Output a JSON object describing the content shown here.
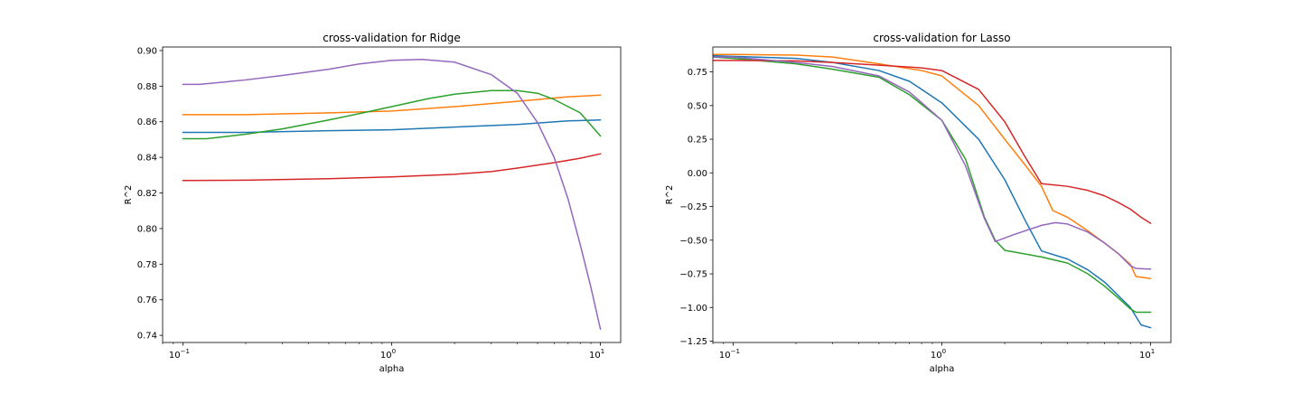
{
  "chart_data": [
    {
      "type": "line",
      "title": "cross-validation for Ridge",
      "xlabel": "alpha",
      "ylabel": "R^2",
      "xscale": "log",
      "xlim": [
        0.08,
        12.5
      ],
      "ylim": [
        0.736,
        0.902
      ],
      "xticks": [
        {
          "value": 0.1,
          "base": "10",
          "exp": "−1"
        },
        {
          "value": 1,
          "base": "10",
          "exp": "0"
        },
        {
          "value": 10,
          "base": "10",
          "exp": "1"
        }
      ],
      "yticks": [
        {
          "value": 0.74,
          "label": "0.74"
        },
        {
          "value": 0.76,
          "label": "0.76"
        },
        {
          "value": 0.78,
          "label": "0.78"
        },
        {
          "value": 0.8,
          "label": "0.80"
        },
        {
          "value": 0.82,
          "label": "0.82"
        },
        {
          "value": 0.84,
          "label": "0.84"
        },
        {
          "value": 0.86,
          "label": "0.86"
        },
        {
          "value": 0.88,
          "label": "0.88"
        },
        {
          "value": 0.9,
          "label": "0.90"
        }
      ],
      "grid": false,
      "series": [
        {
          "color": "#1f77b4",
          "points": [
            [
              0.1,
              0.854
            ],
            [
              0.2,
              0.854
            ],
            [
              0.5,
              0.855
            ],
            [
              1,
              0.8555
            ],
            [
              2,
              0.857
            ],
            [
              4,
              0.8585
            ],
            [
              7,
              0.8605
            ],
            [
              10,
              0.861
            ]
          ]
        },
        {
          "color": "#ff7f0e",
          "points": [
            [
              0.1,
              0.864
            ],
            [
              0.2,
              0.864
            ],
            [
              0.5,
              0.865
            ],
            [
              1,
              0.866
            ],
            [
              2,
              0.8685
            ],
            [
              4,
              0.8715
            ],
            [
              7,
              0.874
            ],
            [
              10,
              0.875
            ]
          ]
        },
        {
          "color": "#2ca02c",
          "points": [
            [
              0.1,
              0.8505
            ],
            [
              0.13,
              0.8505
            ],
            [
              0.2,
              0.853
            ],
            [
              0.3,
              0.856
            ],
            [
              0.5,
              0.861
            ],
            [
              0.8,
              0.866
            ],
            [
              1,
              0.8685
            ],
            [
              1.5,
              0.873
            ],
            [
              2,
              0.8755
            ],
            [
              3,
              0.8775
            ],
            [
              4,
              0.8775
            ],
            [
              5,
              0.876
            ],
            [
              6,
              0.8725
            ],
            [
              8,
              0.865
            ],
            [
              10,
              0.852
            ]
          ]
        },
        {
          "color": "#d62728",
          "points": [
            [
              0.1,
              0.827
            ],
            [
              0.2,
              0.8272
            ],
            [
              0.5,
              0.828
            ],
            [
              1,
              0.829
            ],
            [
              2,
              0.8305
            ],
            [
              3,
              0.832
            ],
            [
              4,
              0.834
            ],
            [
              6,
              0.837
            ],
            [
              8,
              0.8395
            ],
            [
              10,
              0.842
            ]
          ]
        },
        {
          "color": "#9467bd",
          "points": [
            [
              0.1,
              0.881
            ],
            [
              0.12,
              0.881
            ],
            [
              0.2,
              0.8835
            ],
            [
              0.3,
              0.886
            ],
            [
              0.5,
              0.8895
            ],
            [
              0.7,
              0.8925
            ],
            [
              1,
              0.8945
            ],
            [
              1.4,
              0.895
            ],
            [
              2,
              0.8935
            ],
            [
              3,
              0.8865
            ],
            [
              4,
              0.876
            ],
            [
              5,
              0.8595
            ],
            [
              6,
              0.84
            ],
            [
              7,
              0.8165
            ],
            [
              8,
              0.791
            ],
            [
              9,
              0.767
            ],
            [
              10,
              0.7435
            ]
          ]
        }
      ]
    },
    {
      "type": "line",
      "title": "cross-validation for Lasso",
      "xlabel": "alpha",
      "ylabel": "R^2",
      "xscale": "log",
      "xlim": [
        0.08,
        12.5
      ],
      "ylim": [
        -1.26,
        0.935
      ],
      "xticks": [
        {
          "value": 0.1,
          "base": "10",
          "exp": "−1"
        },
        {
          "value": 1,
          "base": "10",
          "exp": "0"
        },
        {
          "value": 10,
          "base": "10",
          "exp": "1"
        }
      ],
      "yticks": [
        {
          "value": 0.75,
          "label": "0.75"
        },
        {
          "value": 0.5,
          "label": "0.50"
        },
        {
          "value": 0.25,
          "label": "0.25"
        },
        {
          "value": 0.0,
          "label": "0.00"
        },
        {
          "value": -0.25,
          "label": "−0.25"
        },
        {
          "value": -0.5,
          "label": "−0.50"
        },
        {
          "value": -0.75,
          "label": "−0.75"
        },
        {
          "value": -1.0,
          "label": "−1.00"
        },
        {
          "value": -1.25,
          "label": "−1.25"
        }
      ],
      "grid": false,
      "series": [
        {
          "color": "#1f77b4",
          "points": [
            [
              0.08,
              0.87
            ],
            [
              0.1,
              0.865
            ],
            [
              0.2,
              0.85
            ],
            [
              0.3,
              0.82
            ],
            [
              0.5,
              0.76
            ],
            [
              0.7,
              0.68
            ],
            [
              1,
              0.52
            ],
            [
              1.5,
              0.25
            ],
            [
              2,
              -0.05
            ],
            [
              2.5,
              -0.35
            ],
            [
              3,
              -0.58
            ],
            [
              4,
              -0.64
            ],
            [
              5,
              -0.72
            ],
            [
              6,
              -0.81
            ],
            [
              8,
              -1.0
            ],
            [
              9,
              -1.13
            ],
            [
              10,
              -1.15
            ]
          ]
        },
        {
          "color": "#ff7f0e",
          "points": [
            [
              0.08,
              0.88
            ],
            [
              0.1,
              0.88
            ],
            [
              0.2,
              0.875
            ],
            [
              0.3,
              0.86
            ],
            [
              0.5,
              0.81
            ],
            [
              0.8,
              0.76
            ],
            [
              1,
              0.72
            ],
            [
              1.5,
              0.5
            ],
            [
              2,
              0.25
            ],
            [
              2.5,
              0.06
            ],
            [
              3,
              -0.1
            ],
            [
              3.4,
              -0.28
            ],
            [
              4,
              -0.33
            ],
            [
              5,
              -0.43
            ],
            [
              6,
              -0.52
            ],
            [
              7,
              -0.6
            ],
            [
              8,
              -0.68
            ],
            [
              8.5,
              -0.77
            ],
            [
              10,
              -0.785
            ]
          ]
        },
        {
          "color": "#2ca02c",
          "points": [
            [
              0.08,
              0.86
            ],
            [
              0.1,
              0.85
            ],
            [
              0.2,
              0.81
            ],
            [
              0.3,
              0.77
            ],
            [
              0.5,
              0.71
            ],
            [
              0.7,
              0.58
            ],
            [
              1,
              0.39
            ],
            [
              1.3,
              0.1
            ],
            [
              1.6,
              -0.33
            ],
            [
              1.8,
              -0.5
            ],
            [
              2,
              -0.575
            ],
            [
              3,
              -0.625
            ],
            [
              4,
              -0.67
            ],
            [
              5,
              -0.75
            ],
            [
              6,
              -0.84
            ],
            [
              7,
              -0.93
            ],
            [
              8,
              -1.01
            ],
            [
              8.5,
              -1.035
            ],
            [
              10,
              -1.035
            ]
          ]
        },
        {
          "color": "#d62728",
          "points": [
            [
              0.08,
              0.835
            ],
            [
              0.1,
              0.835
            ],
            [
              0.2,
              0.832
            ],
            [
              0.3,
              0.82
            ],
            [
              0.5,
              0.8
            ],
            [
              0.8,
              0.78
            ],
            [
              1,
              0.76
            ],
            [
              1.5,
              0.62
            ],
            [
              2,
              0.38
            ],
            [
              2.5,
              0.12
            ],
            [
              3,
              -0.08
            ],
            [
              4,
              -0.1
            ],
            [
              5,
              -0.13
            ],
            [
              6,
              -0.17
            ],
            [
              7,
              -0.22
            ],
            [
              8,
              -0.27
            ],
            [
              9,
              -0.33
            ],
            [
              10,
              -0.375
            ]
          ]
        },
        {
          "color": "#9467bd",
          "points": [
            [
              0.08,
              0.86
            ],
            [
              0.1,
              0.86
            ],
            [
              0.2,
              0.82
            ],
            [
              0.3,
              0.79
            ],
            [
              0.5,
              0.72
            ],
            [
              0.7,
              0.6
            ],
            [
              1,
              0.39
            ],
            [
              1.3,
              0.05
            ],
            [
              1.6,
              -0.34
            ],
            [
              1.8,
              -0.51
            ],
            [
              2.2,
              -0.46
            ],
            [
              3,
              -0.39
            ],
            [
              3.5,
              -0.37
            ],
            [
              4,
              -0.38
            ],
            [
              5,
              -0.44
            ],
            [
              6,
              -0.52
            ],
            [
              7,
              -0.6
            ],
            [
              8,
              -0.69
            ],
            [
              8.5,
              -0.71
            ],
            [
              10,
              -0.715
            ]
          ]
        }
      ]
    }
  ]
}
